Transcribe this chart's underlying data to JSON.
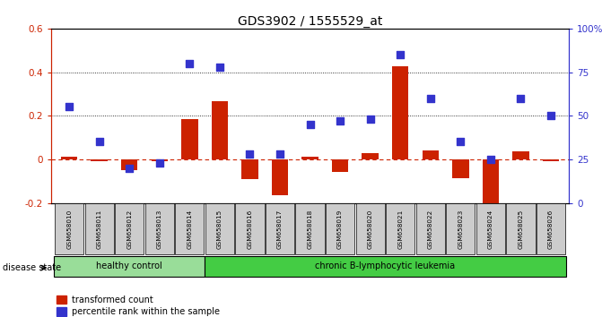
{
  "title": "GDS3902 / 1555529_at",
  "samples": [
    "GSM658010",
    "GSM658011",
    "GSM658012",
    "GSM658013",
    "GSM658014",
    "GSM658015",
    "GSM658016",
    "GSM658017",
    "GSM658018",
    "GSM658019",
    "GSM658020",
    "GSM658021",
    "GSM658022",
    "GSM658023",
    "GSM658024",
    "GSM658025",
    "GSM658026"
  ],
  "red_bars": [
    0.01,
    -0.01,
    -0.05,
    -0.01,
    0.185,
    0.265,
    -0.09,
    -0.165,
    0.01,
    -0.06,
    0.03,
    0.425,
    0.04,
    -0.085,
    -0.215,
    0.035,
    -0.01
  ],
  "blue_squares_pct": [
    55,
    35,
    20,
    23,
    80,
    78,
    28,
    28,
    45,
    47,
    48,
    85,
    60,
    35,
    25,
    60,
    50
  ],
  "healthy_control_count": 5,
  "chronic_leukemia_count": 12,
  "ylim_left": [
    -0.2,
    0.6
  ],
  "ylim_right": [
    0,
    100
  ],
  "left_yticks": [
    -0.2,
    0.0,
    0.2,
    0.4,
    0.6
  ],
  "left_yticklabels": [
    "-0.2",
    "0",
    "0.2",
    "0.4",
    "0.6"
  ],
  "right_yticks": [
    0,
    25,
    50,
    75,
    100
  ],
  "right_yticklabels": [
    "0",
    "25",
    "50",
    "75",
    "100%"
  ],
  "dotted_lines_pct": [
    75,
    50
  ],
  "dashed_line_pct": 25,
  "bar_color": "#cc2200",
  "square_color": "#3333cc",
  "healthy_bg": "#99dd99",
  "leukemia_bg": "#44cc44",
  "tick_bg": "#cccccc",
  "disease_label_healthy": "healthy control",
  "disease_label_leukemia": "chronic B-lymphocytic leukemia",
  "legend_red": "transformed count",
  "legend_blue": "percentile rank within the sample",
  "disease_state_label": "disease state"
}
